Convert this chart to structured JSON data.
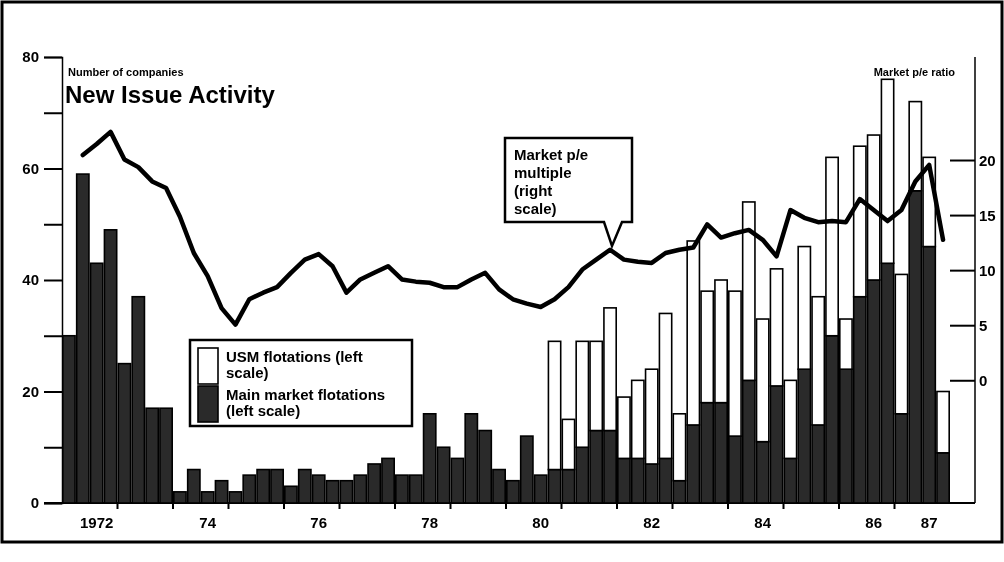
{
  "chart_data": {
    "type": "bar",
    "title": "New Issue Activity",
    "ylabel": "Number of companies",
    "y2label": "Market p/e ratio",
    "stacked": true,
    "legend": "left",
    "categories": [
      null,
      null,
      "1972",
      null,
      null,
      null,
      null,
      null,
      null,
      null,
      "74",
      null,
      null,
      null,
      null,
      null,
      null,
      null,
      "76",
      null,
      null,
      null,
      null,
      null,
      null,
      null,
      "78",
      null,
      null,
      null,
      null,
      null,
      null,
      null,
      "80",
      null,
      null,
      null,
      null,
      null,
      null,
      null,
      "82",
      null,
      null,
      null,
      null,
      null,
      null,
      null,
      "84",
      null,
      null,
      null,
      null,
      null,
      null,
      null,
      "86",
      null,
      null,
      null,
      "87",
      null
    ],
    "series": [
      {
        "name": "Main market flotations (left scale)",
        "color": "#2a2a2a",
        "values": [
          30,
          59,
          43,
          49,
          25,
          37,
          17,
          17,
          2,
          6,
          2,
          4,
          2,
          5,
          6,
          6,
          3,
          6,
          5,
          4,
          4,
          5,
          7,
          8,
          5,
          5,
          16,
          10,
          8,
          16,
          13,
          6,
          4,
          12,
          5,
          6,
          6,
          10,
          13,
          13,
          8,
          8,
          7,
          8,
          4,
          14,
          18,
          18,
          12,
          22,
          11,
          21,
          8,
          24,
          14,
          30,
          24,
          37,
          40,
          43,
          16,
          56,
          46,
          9
        ]
      },
      {
        "name": "USM flotations (left scale)",
        "color": "#ffffff",
        "values": [
          null,
          null,
          null,
          null,
          null,
          null,
          null,
          null,
          null,
          null,
          null,
          null,
          null,
          null,
          null,
          null,
          null,
          null,
          null,
          null,
          null,
          null,
          null,
          null,
          null,
          null,
          null,
          null,
          null,
          null,
          null,
          null,
          null,
          null,
          null,
          23,
          9,
          19,
          16,
          22,
          11,
          14,
          17,
          26,
          12,
          33,
          20,
          22,
          26,
          32,
          22,
          21,
          14,
          22,
          23,
          32,
          9,
          27,
          26,
          33,
          25,
          16,
          16,
          11
        ]
      },
      {
        "name": "Market p/e multiple (right scale)",
        "type": "line",
        "axis": "y2",
        "color": "#000000",
        "values": [
          null,
          20.5,
          21.5,
          22.6,
          20.1,
          19.4,
          18.1,
          17.5,
          14.9,
          11.6,
          9.5,
          6.6,
          5.1,
          7.4,
          8,
          8.5,
          9.8,
          11,
          11.5,
          10.4,
          8,
          9.2,
          9.8,
          10.4,
          9.2,
          9,
          8.9,
          8.5,
          8.5,
          9.2,
          9.8,
          8.3,
          7.4,
          7,
          6.7,
          7.4,
          8.5,
          10.1,
          11,
          11.9,
          11,
          10.8,
          10.7,
          11.6,
          11.9,
          12.1,
          14.2,
          13,
          13.4,
          13.7,
          12.8,
          11.3,
          15.5,
          14.8,
          14.4,
          14.5,
          14.4,
          16.5,
          15.5,
          14.5,
          15.5,
          18.1,
          19.6,
          12.8
        ]
      }
    ],
    "ylim": [
      0,
      80
    ],
    "yticks": [
      0,
      20,
      40,
      60,
      80
    ],
    "y2lim": [
      -11.1,
      29.4
    ],
    "y2ticks": [
      0,
      5,
      10,
      15,
      20
    ]
  }
}
